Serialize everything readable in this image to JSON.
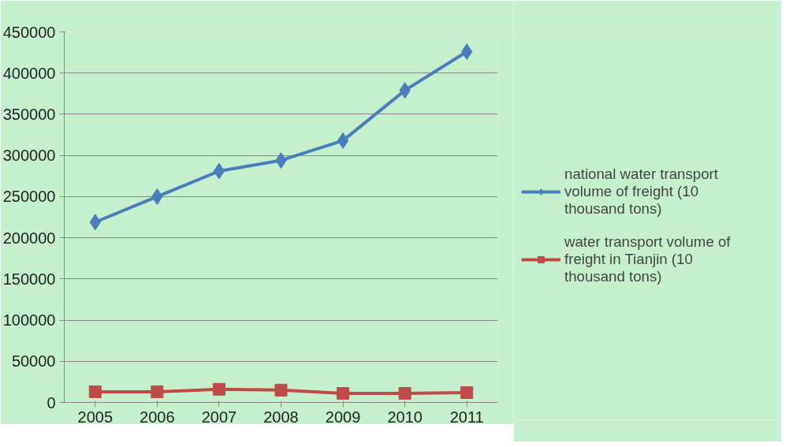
{
  "chart_data": {
    "type": "line",
    "categories": [
      "2005",
      "2006",
      "2007",
      "2008",
      "2009",
      "2010",
      "2011"
    ],
    "series": [
      {
        "name": "national water transport volume of freight (10 thousand tons)",
        "color": "#4a7ebb",
        "values": [
          219000,
          250000,
          281000,
          294000,
          318000,
          379000,
          426000
        ],
        "marker": "diamond"
      },
      {
        "name": "water transport volume of freight in Tianjin (10 thousand tons)",
        "color": "#be4b48",
        "values": [
          13000,
          13000,
          16000,
          15000,
          11000,
          11000,
          12000
        ],
        "marker": "square"
      }
    ],
    "ylim": [
      0,
      450000
    ],
    "yticks": [
      0,
      50000,
      100000,
      150000,
      200000,
      250000,
      300000,
      350000,
      400000,
      450000
    ],
    "grid": "y",
    "legend": "right",
    "line_style": "solid"
  }
}
